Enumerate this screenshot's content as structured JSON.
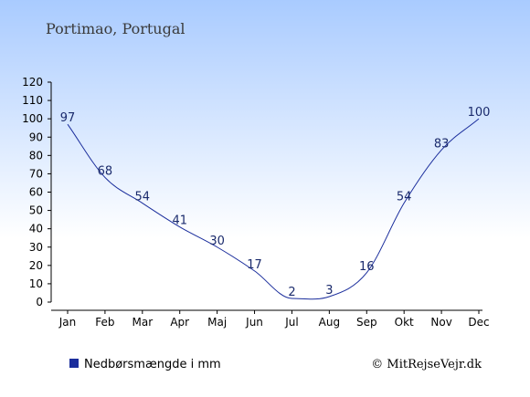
{
  "colors": {
    "background_top": "#a9cbff",
    "background_bottom": "#ffffff",
    "series": "#1a2d9c",
    "axis": "#000000",
    "label": "#1a2a6c"
  },
  "chart_data": {
    "type": "line",
    "title": "Portimao, Portugal",
    "categories": [
      "Jan",
      "Feb",
      "Mar",
      "Apr",
      "Maj",
      "Jun",
      "Jul",
      "Aug",
      "Sep",
      "Okt",
      "Nov",
      "Dec"
    ],
    "series": [
      {
        "name": "Nedbørsmængde i mm",
        "values": [
          97,
          68,
          54,
          41,
          30,
          17,
          2,
          3,
          16,
          54,
          83,
          100
        ]
      }
    ],
    "data_labels": [
      "97",
      "68",
      "54",
      "41",
      "30",
      "17",
      "2",
      "3",
      "16",
      "54",
      "83",
      "100"
    ],
    "ylim": [
      0,
      120
    ],
    "yticks": [
      "0",
      "10",
      "20",
      "30",
      "40",
      "50",
      "60",
      "70",
      "80",
      "90",
      "100",
      "110",
      "120"
    ],
    "grid": false,
    "legend_position": "bottom-left"
  },
  "legend": {
    "label": "Nedbørsmængde i mm"
  },
  "credit": "© MitRejseVejr.dk"
}
